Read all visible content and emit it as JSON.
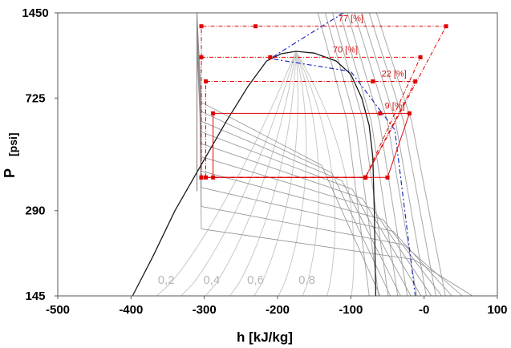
{
  "chart_data": {
    "type": "line",
    "title": "",
    "xlabel": "h [kJ/kg]",
    "ylabel": "P",
    "ylabel_unit": "[psi]",
    "x_ticks": [
      "-500",
      "-400",
      "-300",
      "-200",
      "-100",
      "-0",
      "100"
    ],
    "xlim": [
      -500,
      100
    ],
    "y_scale": "log",
    "y_ticks": [
      "1450",
      "725",
      "290",
      "145"
    ],
    "y_tick_values": [
      1450,
      725,
      290,
      145
    ],
    "ylim": [
      145,
      1450
    ],
    "saturation_dome": {
      "color": "#1a1a1a",
      "liquid": [
        [
          -398,
          145
        ],
        [
          -370,
          200
        ],
        [
          -340,
          290
        ],
        [
          -300,
          440
        ],
        [
          -270,
          600
        ],
        [
          -240,
          800
        ],
        [
          -215,
          980
        ],
        [
          -195,
          1040
        ],
        [
          -175,
          1060
        ]
      ],
      "vapor": [
        [
          -175,
          1060
        ],
        [
          -150,
          1045
        ],
        [
          -120,
          980
        ],
        [
          -100,
          880
        ],
        [
          -85,
          725
        ],
        [
          -75,
          580
        ],
        [
          -70,
          450
        ],
        [
          -68,
          290
        ],
        [
          -66,
          145
        ]
      ]
    },
    "quality_lines": {
      "color": "#c8c8c8",
      "labels": [
        "0,2",
        "0,4",
        "0,6",
        "0,8"
      ],
      "label_x": [
        -352,
        -290,
        -230,
        -160
      ],
      "label_y": 160
    },
    "isotherms": {
      "color": "#909090",
      "count": 10
    },
    "isentropes": {
      "color": "#a8a8a8",
      "count": 9
    },
    "blue_curve": {
      "color": "#2030c0",
      "points": [
        [
          -110,
          1450
        ],
        [
          -210,
          1000
        ],
        [
          -100,
          900
        ],
        [
          -40,
          560
        ],
        [
          -12,
          145
        ]
      ]
    },
    "cycles": [
      {
        "label": "77 [%]",
        "p_high": 1300,
        "p_low": 380,
        "h_liq": -304,
        "h_comp_in": -230,
        "h_comp_out": 30,
        "h_sat_v": -80,
        "style": "dashdot"
      },
      {
        "label": "70 [%]",
        "p_high": 1010,
        "p_low": 380,
        "h_liq": -304,
        "h_comp_in": -210,
        "h_comp_out": -5,
        "h_sat_v": -80,
        "style": "dashdot"
      },
      {
        "label": "22 [%]",
        "p_high": 830,
        "p_low": 380,
        "h_liq": -298,
        "h_comp_in": -70,
        "h_comp_out": -12,
        "h_sat_v": -80,
        "style": "dashdot"
      },
      {
        "label": "9 [%]",
        "p_high": 640,
        "p_low": 380,
        "h_liq": -288,
        "h_comp_in": -60,
        "h_comp_out": -20,
        "h_sat_v": -50,
        "style": "solid"
      }
    ],
    "cycle_color": "#e00000"
  }
}
